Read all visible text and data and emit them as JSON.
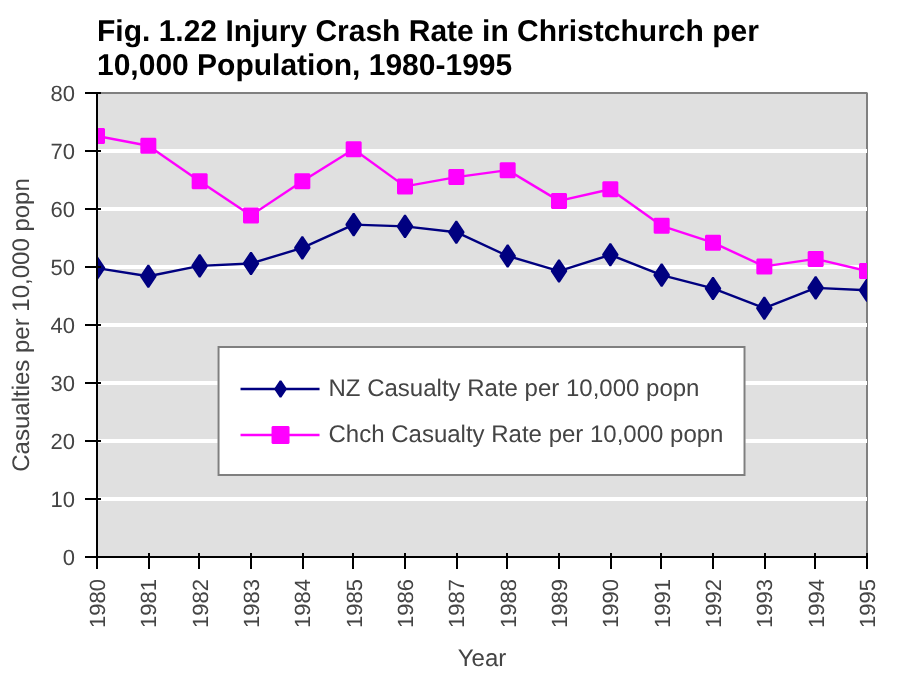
{
  "chart_data": {
    "type": "line",
    "title": "Fig. 1.22 Injury Crash Rate in Christchurch per 10,000 Population, 1980-1995",
    "xlabel": "Year",
    "ylabel": "Casualties per 10,000 popn",
    "categories": [
      "1980",
      "1981",
      "1982",
      "1983",
      "1984",
      "1985",
      "1986",
      "1987",
      "1988",
      "1989",
      "1990",
      "1991",
      "1992",
      "1993",
      "1994",
      "1995"
    ],
    "series": [
      {
        "name": "NZ Casualty Rate per 10,000 popn",
        "color": "#000080",
        "marker": "diamond",
        "values": [
          49.8,
          48.4,
          50.2,
          50.6,
          53.3,
          57.3,
          57.0,
          56.0,
          51.9,
          49.3,
          52.1,
          48.6,
          46.3,
          42.9,
          46.4,
          46.0
        ]
      },
      {
        "name": "Chch Casualty Rate per 10,000 popn",
        "color": "#ff00ff",
        "marker": "square",
        "values": [
          72.6,
          70.9,
          64.8,
          58.9,
          64.8,
          70.3,
          63.9,
          65.5,
          66.7,
          61.4,
          63.4,
          57.1,
          54.2,
          50.1,
          51.4,
          49.3
        ]
      }
    ],
    "ylim": [
      0,
      80
    ],
    "yticks": [
      0,
      10,
      20,
      30,
      40,
      50,
      60,
      70,
      80
    ],
    "grid": "y",
    "legend": "bottom",
    "line_style": "solid"
  }
}
